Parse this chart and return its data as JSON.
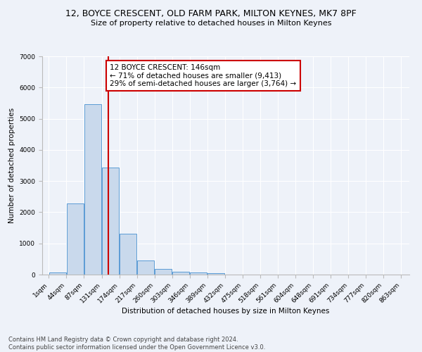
{
  "title1": "12, BOYCE CRESCENT, OLD FARM PARK, MILTON KEYNES, MK7 8PF",
  "title2": "Size of property relative to detached houses in Milton Keynes",
  "xlabel": "Distribution of detached houses by size in Milton Keynes",
  "ylabel": "Number of detached properties",
  "footnote1": "Contains HM Land Registry data © Crown copyright and database right 2024.",
  "footnote2": "Contains public sector information licensed under the Open Government Licence v3.0.",
  "annotation_title": "12 BOYCE CRESCENT: 146sqm",
  "annotation_line1": "← 71% of detached houses are smaller (9,413)",
  "annotation_line2": "29% of semi-detached houses are larger (3,764) →",
  "property_size": 146,
  "bin_edges": [
    1,
    44,
    87,
    131,
    174,
    217,
    260,
    303,
    346,
    389,
    432,
    475,
    518,
    561,
    604,
    648,
    691,
    734,
    777,
    820,
    863
  ],
  "bin_counts": [
    60,
    2270,
    5470,
    3440,
    1310,
    450,
    175,
    100,
    70,
    45,
    0,
    0,
    0,
    0,
    0,
    0,
    0,
    0,
    0,
    0
  ],
  "bar_color": "#c9d9ec",
  "bar_edge_color": "#5b9bd5",
  "vline_color": "#cc0000",
  "vline_x": 146,
  "annotation_box_color": "#cc0000",
  "background_color": "#eef2f9",
  "grid_color": "#ffffff",
  "ylim": [
    0,
    7000
  ],
  "xlim_left": -15,
  "xlim_right": 883,
  "title1_fontsize": 9,
  "title2_fontsize": 8,
  "axis_label_fontsize": 7.5,
  "tick_fontsize": 6.5,
  "annotation_fontsize": 7.5,
  "footnote_fontsize": 6
}
